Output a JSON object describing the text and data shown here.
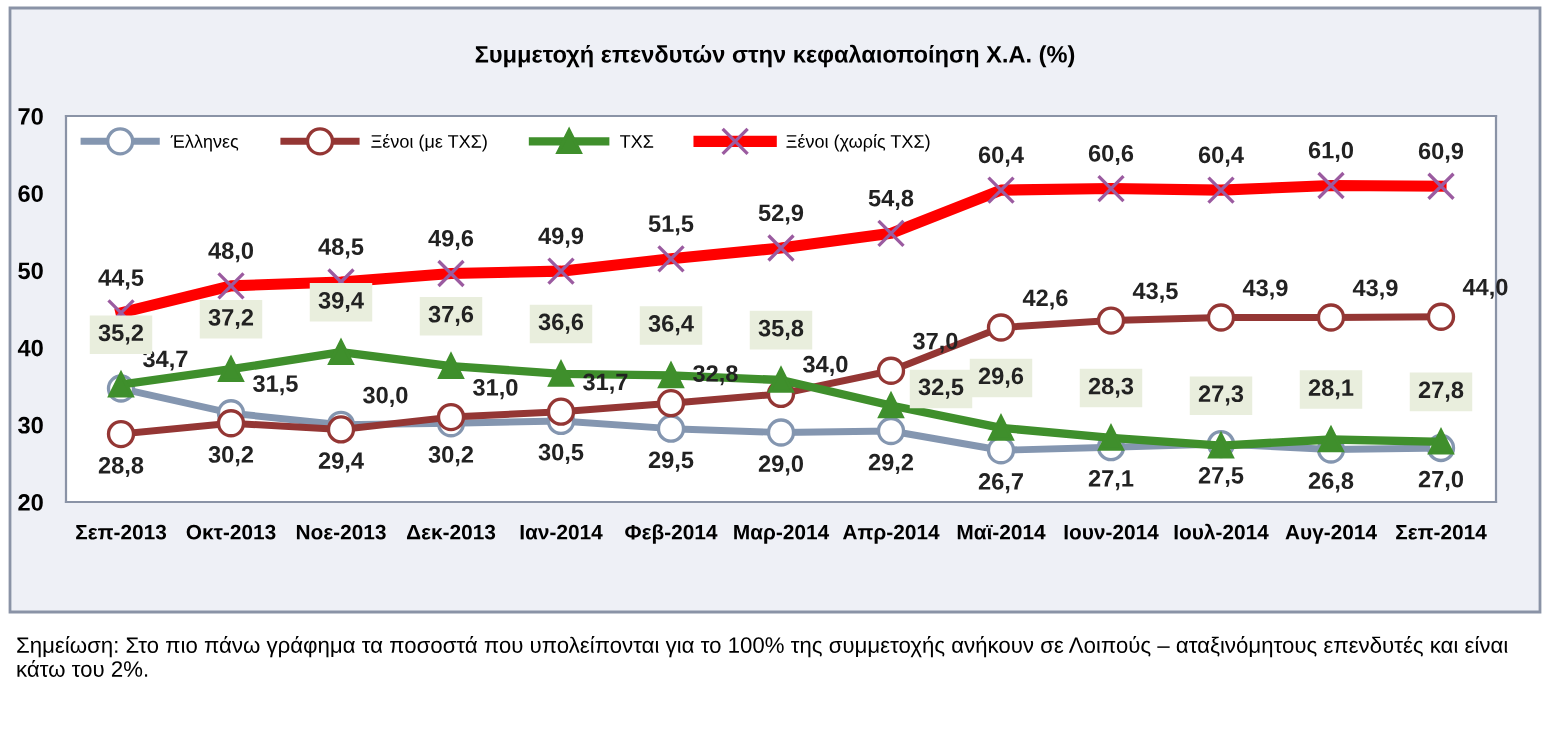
{
  "chart_data": {
    "type": "line",
    "title": "Συμμετοχή επενδυτών στην κεφαλαιοποίηση Χ.Α. (%)",
    "categories": [
      "Σεπ-2013",
      "Οκτ-2013",
      "Νοε-2013",
      "Δεκ-2013",
      "Ιαν-2014",
      "Φεβ-2014",
      "Μαρ-2014",
      "Απρ-2014",
      "Μαϊ-2014",
      "Ιουν-2014",
      "Ιουλ-2014",
      "Αυγ-2014",
      "Σεπ-2014"
    ],
    "series": [
      {
        "name": "Έλληνες",
        "color": "#8496b0",
        "marker": "circle",
        "values": [
          34.7,
          31.5,
          30.0,
          30.2,
          30.5,
          29.5,
          29.0,
          29.2,
          26.7,
          27.1,
          27.5,
          26.8,
          27.0
        ],
        "value_labels": [
          "34,7",
          "31,5",
          "30,0",
          "30,2",
          "30,5",
          "29,5",
          "29,0",
          "29,2",
          "26,7",
          "27,1",
          "27,5",
          "26,8",
          "27,0"
        ]
      },
      {
        "name": "Ξένοι (με ΤΧΣ)",
        "color": "#943634",
        "marker": "circle",
        "values": [
          28.8,
          30.2,
          29.4,
          31.0,
          31.7,
          32.8,
          34.0,
          37.0,
          42.6,
          43.5,
          43.9,
          43.9,
          44.0
        ],
        "value_labels": [
          "28,8",
          "30,2",
          "29,4",
          "31,0",
          "31,7",
          "32,8",
          "34,0",
          "37,0",
          "42,6",
          "43,5",
          "43,9",
          "43,9",
          "44,0"
        ]
      },
      {
        "name": "ΤΧΣ",
        "color": "#3f8f2c",
        "marker": "triangle",
        "values": [
          35.2,
          37.2,
          39.4,
          37.6,
          36.6,
          36.4,
          35.8,
          32.5,
          29.6,
          28.3,
          27.3,
          28.1,
          27.8
        ],
        "value_labels": [
          "35,2",
          "37,2",
          "39,4",
          "37,6",
          "36,6",
          "36,4",
          "35,8",
          "32,5",
          "29,6",
          "28,3",
          "27,3",
          "28,1",
          "27,8"
        ]
      },
      {
        "name": "Ξένοι (χωρίς ΤΧΣ)",
        "color": "#ff0000",
        "marker": "cross",
        "values": [
          44.5,
          48.0,
          48.5,
          49.6,
          49.9,
          51.5,
          52.9,
          54.8,
          60.4,
          60.6,
          60.4,
          61.0,
          60.9
        ],
        "value_labels": [
          "44,5",
          "48,0",
          "48,5",
          "49,6",
          "49,9",
          "51,5",
          "52,9",
          "54,8",
          "60,4",
          "60,6",
          "60,4",
          "61,0",
          "60,9"
        ]
      }
    ],
    "ylim": [
      20,
      70
    ],
    "yticks": [
      20,
      30,
      40,
      50,
      60,
      70
    ],
    "grid": false,
    "legend": "top left",
    "data_labels": true,
    "annotations": [
      "Σημείωση: Στο πιο πάνω γράφημα τα ποσοστά που υπολείπονται για το 100% της συμμετοχής ανήκουν σε Λοιπούς – αταξινόμητους επενδυτές και είναι κάτω του 2%."
    ]
  }
}
